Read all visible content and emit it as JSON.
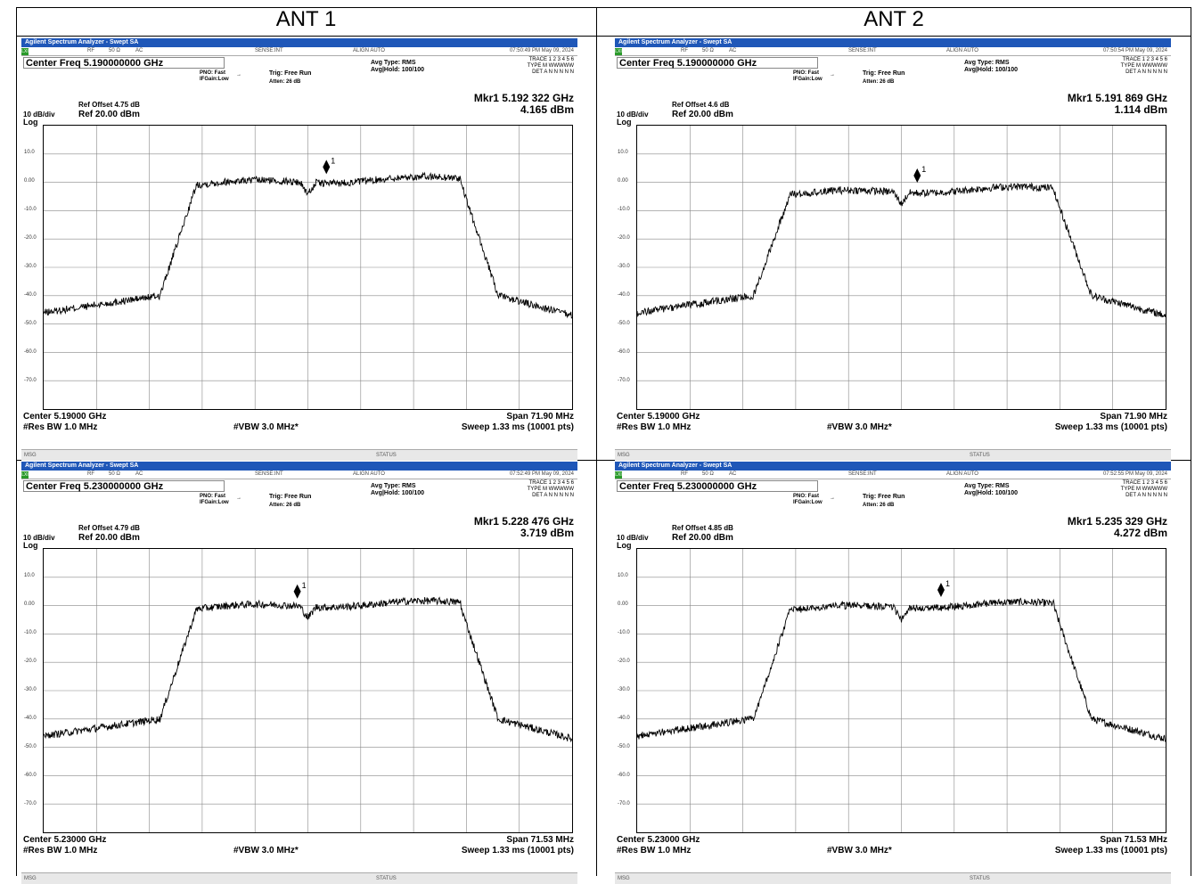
{
  "headers": [
    "ANT 1",
    "ANT 2"
  ],
  "common": {
    "app_title": "Agilent Spectrum Analyzer - Swept SA",
    "rf": "RF",
    "ohm": "50 Ω",
    "ac": "AC",
    "sense": "SENSE:INT",
    "align": "ALIGN AUTO",
    "avg_type": "Avg Type: RMS",
    "avg_hold": "Avg|Hold: 100/100",
    "pno": "PNO: Fast",
    "ifgain": "IFGain:Low",
    "trig": "Trig: Free Run",
    "atten": "Atten: 26 dB",
    "trace_row": "TRACE 1 2 3 4 5 6",
    "type_row": "TYPE M WWWWW",
    "det_row": "DET A N N N N N",
    "db_div": "10 dB/div",
    "log": "Log",
    "ref_level": "Ref 20.00 dBm",
    "res_bw": "#Res BW 1.0 MHz",
    "vbw": "#VBW 3.0 MHz*",
    "sweep": "Sweep  1.33 ms (10001 pts)",
    "msg": "MSG",
    "status": "STATUS",
    "marker_label": "1",
    "y_labels": [
      "10.0",
      "0.00",
      "-10.0",
      "-20.0",
      "-30.0",
      "-40.0",
      "-50.0",
      "-60.0",
      "-70.0"
    ]
  },
  "panels": [
    {
      "id": "ant1-5190",
      "timestamp": "07:50:49 PM May 09, 2024",
      "center_freq_box": "Center Freq 5.190000000 GHz",
      "ref_offset": "Ref Offset 4.75 dB",
      "mkr_freq": "Mkr1 5.192 322 GHz",
      "mkr_amp": "4.165 dBm",
      "center": "Center 5.19000 GHz",
      "span": "Span 71.90 MHz",
      "level_db": 1.5,
      "marker_x": 0.535,
      "marker_db": 4.165,
      "dip_x": 0.5
    },
    {
      "id": "ant2-5190",
      "timestamp": "07:50:54 PM May 09, 2024",
      "center_freq_box": "Center Freq 5.190000000 GHz",
      "ref_offset": "Ref Offset 4.6 dB",
      "mkr_freq": "Mkr1 5.191 869 GHz",
      "mkr_amp": "1.114 dBm",
      "center": "Center 5.19000 GHz",
      "span": "Span 71.90 MHz",
      "level_db": -2.0,
      "marker_x": 0.53,
      "marker_db": 1.114,
      "dip_x": 0.5
    },
    {
      "id": "ant1-5230",
      "timestamp": "07:52:49 PM May 09, 2024",
      "center_freq_box": "Center Freq 5.230000000 GHz",
      "ref_offset": "Ref Offset 4.79 dB",
      "mkr_freq": "Mkr1 5.228 476 GHz",
      "mkr_amp": "3.719 dBm",
      "center": "Center 5.23000 GHz",
      "span": "Span 71.53 MHz",
      "level_db": 1.2,
      "marker_x": 0.48,
      "marker_db": 3.719,
      "dip_x": 0.5
    },
    {
      "id": "ant2-5230",
      "timestamp": "07:52:55 PM May 09, 2024",
      "center_freq_box": "Center Freq 5.230000000 GHz",
      "ref_offset": "Ref Offset 4.85 dB",
      "mkr_freq": "Mkr1 5.235 329 GHz",
      "mkr_amp": "4.272 dBm",
      "center": "Center 5.23000 GHz",
      "span": "Span 71.53 MHz",
      "level_db": 0.8,
      "marker_x": 0.575,
      "marker_db": 4.272,
      "dip_x": 0.5
    }
  ]
}
